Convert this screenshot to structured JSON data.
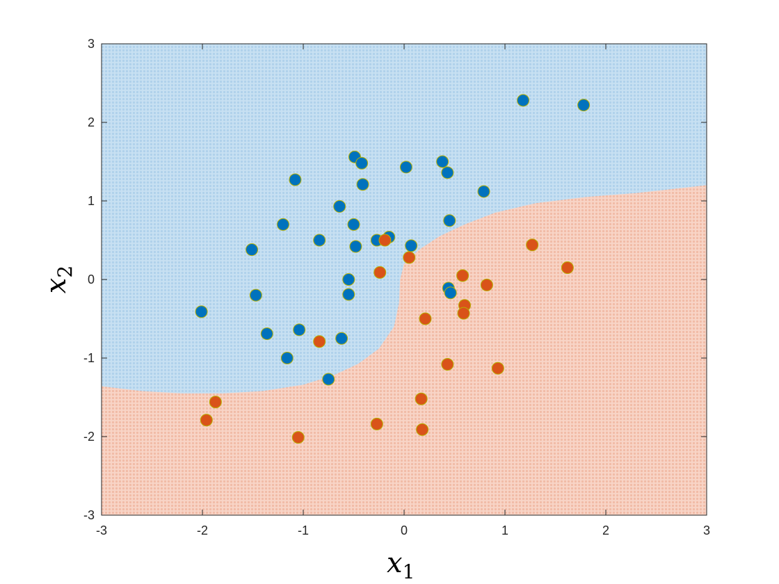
{
  "chart_data": {
    "type": "scatter",
    "title": "",
    "xlabel": {
      "base": "x",
      "sub": "1"
    },
    "ylabel": {
      "base": "x",
      "sub": "2"
    },
    "xlim": [
      -3,
      3
    ],
    "ylim": [
      -3,
      3
    ],
    "xticks": [
      -3,
      -2,
      -1,
      0,
      1,
      2,
      3
    ],
    "yticks": [
      -3,
      -2,
      -1,
      0,
      1,
      2,
      3
    ],
    "xtick_labels": [
      "-3",
      "-2",
      "-1",
      "0",
      "1",
      "2",
      "3"
    ],
    "ytick_labels": [
      "-3",
      "-2",
      "-1",
      "0",
      "1",
      "2",
      "3"
    ],
    "grid": false,
    "legend": "none",
    "colors": {
      "class1_marker": "#0072BD",
      "class2_marker": "#D95319",
      "class1_region": "#BDDAEF",
      "class2_region": "#F5C9B8",
      "marker_edge": "#B8B000"
    },
    "decision_boundary": [
      [
        -3.0,
        -1.36
      ],
      [
        -2.6,
        -1.42
      ],
      [
        -2.2,
        -1.45
      ],
      [
        -1.8,
        -1.45
      ],
      [
        -1.4,
        -1.42
      ],
      [
        -1.0,
        -1.34
      ],
      [
        -0.7,
        -1.22
      ],
      [
        -0.45,
        -1.07
      ],
      [
        -0.25,
        -0.88
      ],
      [
        -0.1,
        -0.6
      ],
      [
        -0.05,
        -0.3
      ],
      [
        -0.04,
        0.0
      ],
      [
        0.0,
        0.2
      ],
      [
        0.15,
        0.38
      ],
      [
        0.35,
        0.55
      ],
      [
        0.6,
        0.7
      ],
      [
        0.9,
        0.85
      ],
      [
        1.3,
        0.97
      ],
      [
        1.8,
        1.05
      ],
      [
        2.3,
        1.1
      ],
      [
        3.0,
        1.2
      ]
    ],
    "series": [
      {
        "class": 1,
        "points": [
          [
            1.18,
            2.28
          ],
          [
            1.78,
            2.22
          ],
          [
            -0.49,
            1.56
          ],
          [
            -0.42,
            1.48
          ],
          [
            0.38,
            1.5
          ],
          [
            0.02,
            1.43
          ],
          [
            0.43,
            1.36
          ],
          [
            -1.08,
            1.27
          ],
          [
            -0.41,
            1.21
          ],
          [
            0.79,
            1.12
          ],
          [
            -0.64,
            0.93
          ],
          [
            0.45,
            0.75
          ],
          [
            -1.2,
            0.7
          ],
          [
            -0.5,
            0.7
          ],
          [
            -0.84,
            0.5
          ],
          [
            -0.27,
            0.5
          ],
          [
            -0.15,
            0.54
          ],
          [
            0.07,
            0.43
          ],
          [
            -0.48,
            0.42
          ],
          [
            -1.51,
            0.38
          ],
          [
            -0.55,
            0.0
          ],
          [
            0.44,
            -0.11
          ],
          [
            0.46,
            -0.17
          ],
          [
            -1.47,
            -0.2
          ],
          [
            -0.55,
            -0.19
          ],
          [
            -2.01,
            -0.41
          ],
          [
            -1.04,
            -0.64
          ],
          [
            -1.36,
            -0.69
          ],
          [
            -0.62,
            -0.75
          ],
          [
            -1.16,
            -1.0
          ],
          [
            -0.75,
            -1.27
          ]
        ]
      },
      {
        "class": 2,
        "points": [
          [
            -0.19,
            0.5
          ],
          [
            1.27,
            0.44
          ],
          [
            0.05,
            0.28
          ],
          [
            1.62,
            0.15
          ],
          [
            -0.24,
            0.09
          ],
          [
            0.58,
            0.05
          ],
          [
            0.82,
            -0.07
          ],
          [
            0.6,
            -0.33
          ],
          [
            0.59,
            -0.43
          ],
          [
            0.21,
            -0.5
          ],
          [
            -0.84,
            -0.79
          ],
          [
            0.43,
            -1.08
          ],
          [
            0.93,
            -1.13
          ],
          [
            0.17,
            -1.52
          ],
          [
            -1.87,
            -1.56
          ],
          [
            -1.96,
            -1.79
          ],
          [
            -0.27,
            -1.84
          ],
          [
            0.18,
            -1.91
          ],
          [
            -1.05,
            -2.01
          ]
        ]
      }
    ]
  }
}
